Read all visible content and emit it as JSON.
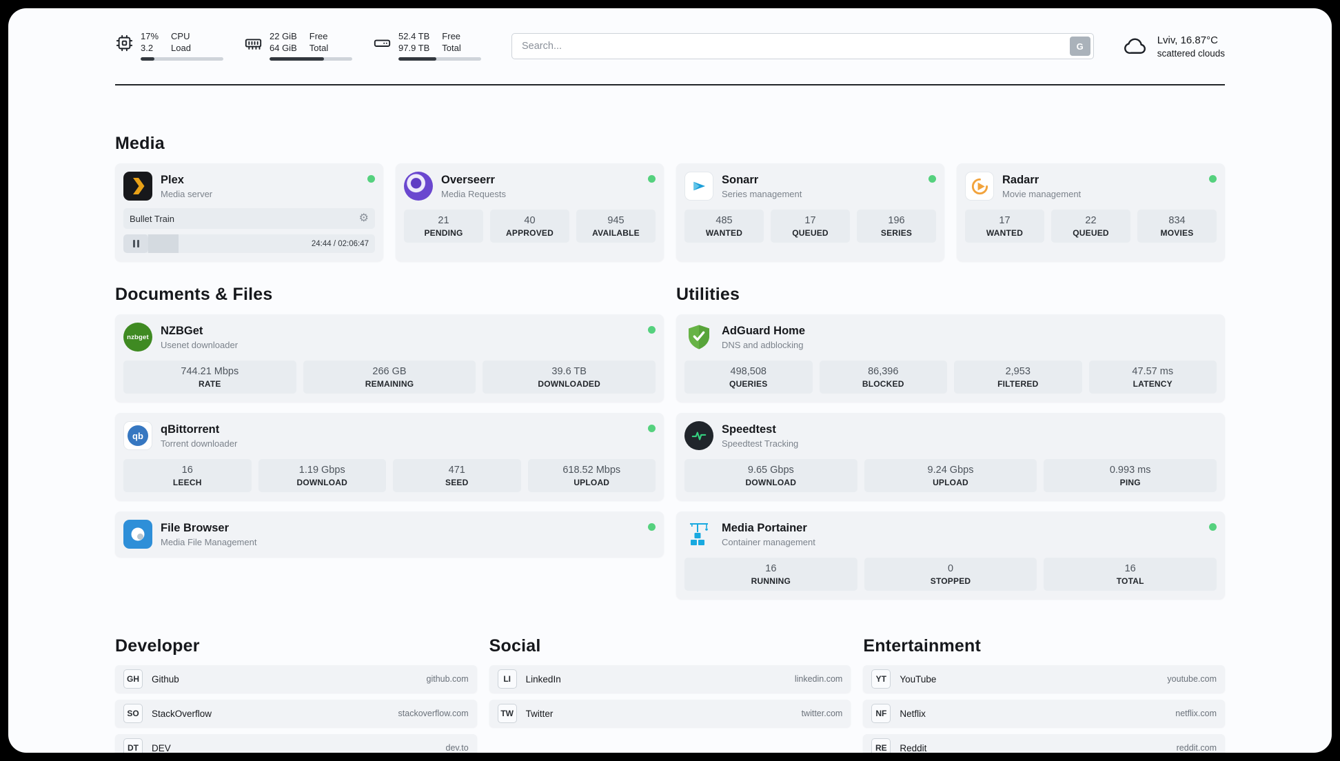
{
  "colors": {
    "status_online": "#55d17e",
    "plex_amber": "#e8a117",
    "sonarr_blue": "#1b9ed8",
    "radarr_orange": "#f2a33c",
    "nzbget_green": "#3f8a22",
    "qbittorrent_blue": "#3677c1",
    "filebrowser_blue": "#2e8fd8",
    "adguard_green": "#67b346",
    "speedtest_green": "#35d07f",
    "portainer_blue": "#18a9e0"
  },
  "icons": {
    "nzbget_text": "nzbget",
    "qbittorrent_text": "qb",
    "gear_glyph": "⚙"
  },
  "header": {
    "cpu": {
      "value": "17%",
      "sub": "3.2",
      "label_top": "CPU",
      "label_bottom": "Load",
      "progress": 17
    },
    "ram": {
      "value": "22 GiB",
      "sub": "64 GiB",
      "label_top": "Free",
      "label_bottom": "Total",
      "progress": 66
    },
    "disk": {
      "value": "52.4 TB",
      "sub": "97.9 TB",
      "label_top": "Free",
      "label_bottom": "Total",
      "progress": 46
    },
    "search": {
      "placeholder": "Search...",
      "button_label": "G"
    },
    "weather": {
      "location": "Lviv, 16.87°C",
      "condition": "scattered clouds"
    }
  },
  "media": {
    "title": "Media",
    "plex": {
      "name": "Plex",
      "subtitle": "Media server",
      "now_playing": "Bullet Train",
      "time": "24:44 / 02:06:47",
      "progress": 19.5
    },
    "overseerr": {
      "name": "Overseerr",
      "subtitle": "Media Requests",
      "stats": [
        {
          "value": "21",
          "label": "PENDING"
        },
        {
          "value": "40",
          "label": "APPROVED"
        },
        {
          "value": "945",
          "label": "AVAILABLE"
        }
      ]
    },
    "sonarr": {
      "name": "Sonarr",
      "subtitle": "Series management",
      "stats": [
        {
          "value": "485",
          "label": "WANTED"
        },
        {
          "value": "17",
          "label": "QUEUED"
        },
        {
          "value": "196",
          "label": "SERIES"
        }
      ]
    },
    "radarr": {
      "name": "Radarr",
      "subtitle": "Movie management",
      "stats": [
        {
          "value": "17",
          "label": "WANTED"
        },
        {
          "value": "22",
          "label": "QUEUED"
        },
        {
          "value": "834",
          "label": "MOVIES"
        }
      ]
    }
  },
  "documents": {
    "title": "Documents & Files",
    "nzbget": {
      "name": "NZBGet",
      "subtitle": "Usenet downloader",
      "stats": [
        {
          "value": "744.21 Mbps",
          "label": "RATE"
        },
        {
          "value": "266 GB",
          "label": "REMAINING"
        },
        {
          "value": "39.6 TB",
          "label": "DOWNLOADED"
        }
      ]
    },
    "qbittorrent": {
      "name": "qBittorrent",
      "subtitle": "Torrent downloader",
      "stats": [
        {
          "value": "16",
          "label": "LEECH"
        },
        {
          "value": "1.19 Gbps",
          "label": "DOWNLOAD"
        },
        {
          "value": "471",
          "label": "SEED"
        },
        {
          "value": "618.52 Mbps",
          "label": "UPLOAD"
        }
      ]
    },
    "filebrowser": {
      "name": "File Browser",
      "subtitle": "Media File Management"
    }
  },
  "utilities": {
    "title": "Utilities",
    "adguard": {
      "name": "AdGuard Home",
      "subtitle": "DNS and adblocking",
      "stats": [
        {
          "value": "498,508",
          "label": "QUERIES"
        },
        {
          "value": "86,396",
          "label": "BLOCKED"
        },
        {
          "value": "2,953",
          "label": "FILTERED"
        },
        {
          "value": "47.57 ms",
          "label": "LATENCY"
        }
      ]
    },
    "speedtest": {
      "name": "Speedtest",
      "subtitle": "Speedtest Tracking",
      "stats": [
        {
          "value": "9.65 Gbps",
          "label": "DOWNLOAD"
        },
        {
          "value": "9.24 Gbps",
          "label": "UPLOAD"
        },
        {
          "value": "0.993 ms",
          "label": "PING"
        }
      ]
    },
    "portainer": {
      "name": "Media Portainer",
      "subtitle": "Container management",
      "stats": [
        {
          "value": "16",
          "label": "RUNNING"
        },
        {
          "value": "0",
          "label": "STOPPED"
        },
        {
          "value": "16",
          "label": "TOTAL"
        }
      ]
    }
  },
  "bookmarks": [
    {
      "title": "Developer",
      "items": [
        {
          "abbr": "GH",
          "name": "Github",
          "url": "github.com"
        },
        {
          "abbr": "SO",
          "name": "StackOverflow",
          "url": "stackoverflow.com"
        },
        {
          "abbr": "DT",
          "name": "DEV",
          "url": "dev.to"
        }
      ]
    },
    {
      "title": "Social",
      "items": [
        {
          "abbr": "LI",
          "name": "LinkedIn",
          "url": "linkedin.com"
        },
        {
          "abbr": "TW",
          "name": "Twitter",
          "url": "twitter.com"
        }
      ]
    },
    {
      "title": "Entertainment",
      "items": [
        {
          "abbr": "YT",
          "name": "YouTube",
          "url": "youtube.com"
        },
        {
          "abbr": "NF",
          "name": "Netflix",
          "url": "netflix.com"
        },
        {
          "abbr": "RE",
          "name": "Reddit",
          "url": "reddit.com"
        }
      ]
    }
  ]
}
